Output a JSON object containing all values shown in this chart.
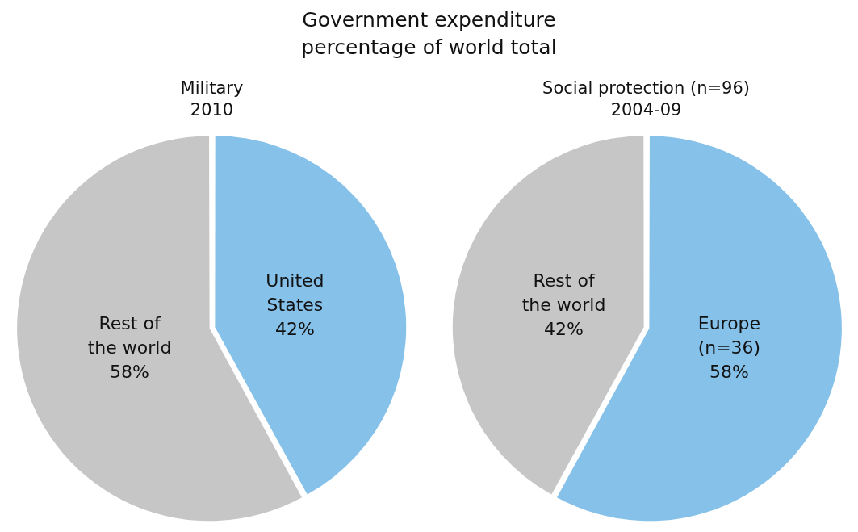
{
  "chart_data": [
    {
      "type": "other",
      "title": "Government expenditure",
      "subtitle": "percentage of world total"
    },
    {
      "type": "pie",
      "title": "Military",
      "subtitle": "2010",
      "categories": [
        "United States",
        "Rest of the world"
      ],
      "values": [
        42,
        58
      ],
      "value_labels": [
        "42%",
        "58%"
      ],
      "colors": [
        "#85c1e9",
        "#c6c6c6"
      ],
      "legend": false
    },
    {
      "type": "pie",
      "title": "Social protection (n=96)",
      "subtitle": "2004-09",
      "categories": [
        "Europe (n=36)",
        "Rest of the world"
      ],
      "values": [
        58,
        42
      ],
      "value_labels": [
        "58%",
        "42%"
      ],
      "colors": [
        "#85c1e9",
        "#c6c6c6"
      ],
      "legend": false
    }
  ]
}
